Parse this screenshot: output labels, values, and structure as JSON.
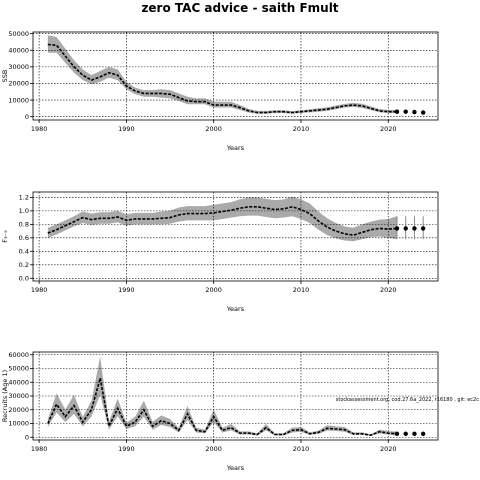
{
  "chart_data": {
    "title": "zero TAC advice - saith Fmult",
    "footnote": "stockassessment.org, cod.27.6a_2022, r16180 , git: ec2c",
    "panels": [
      {
        "type": "line",
        "ylabel": "SSB",
        "xlabel": "Years",
        "xlim": [
          1979.3,
          2025.7
        ],
        "ylim": [
          -2000,
          51000
        ],
        "yticks": [
          0,
          10000,
          20000,
          30000,
          40000,
          50000
        ],
        "xticks": [
          1980,
          1990,
          2000,
          2010,
          2020
        ],
        "grid": true,
        "estimate": {
          "x": [
            1981,
            1982,
            1983,
            1984,
            1985,
            1986,
            1987,
            1988,
            1989,
            1990,
            1991,
            1992,
            1993,
            1994,
            1995,
            1996,
            1997,
            1998,
            1999,
            2000,
            2001,
            2002,
            2003,
            2004,
            2005,
            2006,
            2007,
            2008,
            2009,
            2010,
            2011,
            2012,
            2013,
            2014,
            2015,
            2016,
            2017,
            2018,
            2019,
            2020,
            2021
          ],
          "y": [
            43500,
            43000,
            36500,
            30000,
            25000,
            22000,
            24000,
            26500,
            25000,
            18500,
            15500,
            14000,
            14000,
            14000,
            13500,
            11500,
            9500,
            9000,
            9000,
            7000,
            7000,
            7000,
            5500,
            3500,
            2500,
            2500,
            3000,
            3000,
            2500,
            3000,
            3500,
            4000,
            4500,
            5500,
            6500,
            7000,
            6500,
            5000,
            3500,
            3000,
            3000
          ],
          "lower": [
            38500,
            38500,
            32500,
            26500,
            22000,
            19500,
            21000,
            23500,
            22000,
            16500,
            13500,
            12000,
            12000,
            11500,
            11000,
            9500,
            7500,
            7500,
            7500,
            5500,
            5500,
            5500,
            4000,
            2500,
            1800,
            1800,
            2200,
            2200,
            1800,
            2200,
            2600,
            3000,
            3500,
            4500,
            5500,
            5800,
            5300,
            4000,
            2600,
            2200,
            2000
          ],
          "upper": [
            49000,
            48000,
            41000,
            34000,
            28500,
            25000,
            27500,
            30000,
            28500,
            21000,
            17500,
            16000,
            16000,
            16500,
            16000,
            14000,
            12000,
            11000,
            11000,
            9000,
            9000,
            9000,
            7000,
            4700,
            3500,
            3500,
            3900,
            3900,
            3300,
            3900,
            4500,
            5100,
            5700,
            6700,
            7700,
            8300,
            7800,
            6200,
            4600,
            4000,
            4200
          ]
        },
        "forecast": {
          "x": [
            2021,
            2022,
            2023,
            2024
          ],
          "y": [
            3000,
            3000,
            2800,
            2500
          ],
          "lower": [
            2000,
            1800,
            1600,
            1400
          ],
          "upper": [
            4200,
            4300,
            4200,
            4000
          ]
        }
      },
      {
        "type": "line",
        "ylabel": "F₃₋₅",
        "xlabel": "Years",
        "xlim": [
          1979.3,
          2025.7
        ],
        "ylim": [
          -0.04,
          1.28
        ],
        "yticks": [
          0.0,
          0.2,
          0.4,
          0.6,
          0.8,
          1.0,
          1.2
        ],
        "ytick_labels": [
          "0.0",
          "0.2",
          "0.4",
          "0.6",
          "0.8",
          "1.0",
          "1.2"
        ],
        "xticks": [
          1980,
          1990,
          2000,
          2010,
          2020
        ],
        "grid": true,
        "estimate": {
          "x": [
            1981,
            1982,
            1983,
            1984,
            1985,
            1986,
            1987,
            1988,
            1989,
            1990,
            1991,
            1992,
            1993,
            1994,
            1995,
            1996,
            1997,
            1998,
            1999,
            2000,
            2001,
            2002,
            2003,
            2004,
            2005,
            2006,
            2007,
            2008,
            2009,
            2010,
            2011,
            2012,
            2013,
            2014,
            2015,
            2016,
            2017,
            2018,
            2019,
            2020,
            2021
          ],
          "y": [
            0.67,
            0.72,
            0.78,
            0.84,
            0.9,
            0.87,
            0.89,
            0.89,
            0.91,
            0.86,
            0.88,
            0.88,
            0.88,
            0.89,
            0.9,
            0.94,
            0.96,
            0.96,
            0.96,
            0.97,
            0.99,
            1.01,
            1.04,
            1.06,
            1.06,
            1.04,
            1.02,
            1.03,
            1.06,
            1.02,
            0.96,
            0.85,
            0.76,
            0.7,
            0.66,
            0.64,
            0.68,
            0.72,
            0.74,
            0.73,
            0.74
          ],
          "lower": [
            0.6,
            0.65,
            0.71,
            0.77,
            0.82,
            0.79,
            0.81,
            0.81,
            0.83,
            0.78,
            0.8,
            0.8,
            0.8,
            0.8,
            0.81,
            0.84,
            0.86,
            0.86,
            0.86,
            0.86,
            0.88,
            0.9,
            0.92,
            0.93,
            0.93,
            0.91,
            0.89,
            0.9,
            0.92,
            0.88,
            0.82,
            0.72,
            0.64,
            0.59,
            0.56,
            0.55,
            0.58,
            0.61,
            0.62,
            0.6,
            0.58
          ],
          "upper": [
            0.75,
            0.8,
            0.86,
            0.92,
            0.99,
            0.96,
            0.98,
            0.98,
            1.0,
            0.95,
            0.97,
            0.97,
            0.97,
            0.99,
            1.0,
            1.05,
            1.07,
            1.07,
            1.07,
            1.09,
            1.11,
            1.13,
            1.17,
            1.2,
            1.2,
            1.18,
            1.16,
            1.17,
            1.21,
            1.17,
            1.11,
            0.99,
            0.89,
            0.82,
            0.77,
            0.75,
            0.8,
            0.84,
            0.87,
            0.88,
            0.92
          ]
        },
        "forecast": {
          "x": [
            2021,
            2022,
            2023,
            2024
          ],
          "y": [
            0.74,
            0.74,
            0.74,
            0.74
          ],
          "lower": [
            0.58,
            0.58,
            0.58,
            0.58
          ],
          "upper": [
            0.92,
            0.92,
            0.92,
            0.92
          ]
        }
      },
      {
        "type": "line",
        "ylabel": "Recruits (Age 1)",
        "xlabel": "Years",
        "xlim": [
          1979.3,
          2025.7
        ],
        "ylim": [
          -2000,
          62000
        ],
        "yticks": [
          0,
          10000,
          20000,
          30000,
          40000,
          50000,
          60000
        ],
        "xticks": [
          1980,
          1990,
          2000,
          2010,
          2020
        ],
        "grid": true,
        "estimate": {
          "x": [
            1981,
            1982,
            1983,
            1984,
            1985,
            1986,
            1987,
            1988,
            1989,
            1990,
            1991,
            1992,
            1993,
            1994,
            1995,
            1996,
            1997,
            1998,
            1999,
            2000,
            2001,
            2002,
            2003,
            2004,
            2005,
            2006,
            2007,
            2008,
            2009,
            2010,
            2011,
            2012,
            2013,
            2014,
            2015,
            2016,
            2017,
            2018,
            2019,
            2020,
            2021
          ],
          "y": [
            10000,
            24000,
            15000,
            23000,
            11000,
            20000,
            43000,
            8000,
            21000,
            8000,
            11000,
            20000,
            8000,
            12000,
            10000,
            5000,
            17000,
            5000,
            4000,
            15000,
            5000,
            7000,
            3000,
            3000,
            2000,
            7000,
            2000,
            2000,
            5000,
            5500,
            2500,
            3500,
            6500,
            6000,
            5500,
            2500,
            2500,
            1500,
            4000,
            3000,
            2500
          ],
          "lower": [
            7500,
            18000,
            11000,
            17000,
            8000,
            15000,
            31000,
            5500,
            15500,
            6000,
            8000,
            15000,
            5500,
            9000,
            7500,
            3500,
            12500,
            3500,
            2800,
            11000,
            3500,
            5000,
            2000,
            2000,
            1300,
            5000,
            1300,
            1300,
            3500,
            4000,
            1700,
            2500,
            4800,
            4500,
            4000,
            1700,
            1700,
            1000,
            2800,
            1900,
            1300
          ]
        },
        "forecast": {
          "x": [
            2021,
            2022,
            2023,
            2024
          ],
          "y": [
            2500,
            2500,
            2500,
            2500
          ],
          "lower": [
            1300,
            1300,
            1300,
            1300
          ],
          "upper": [
            4200,
            4200,
            4200,
            4200
          ]
        }
      }
    ]
  }
}
